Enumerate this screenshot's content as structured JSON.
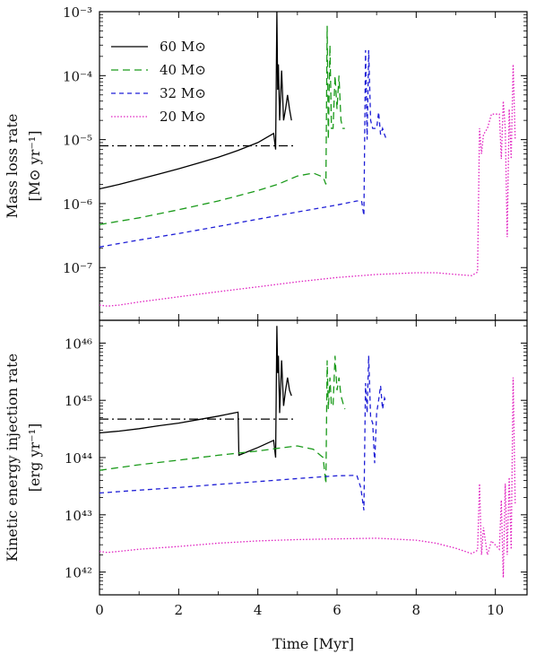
{
  "chart_data": [
    {
      "type": "line",
      "panel": "top",
      "ylabel_line1": "Mass loss rate",
      "ylabel_line2": "[M⊙ yr⁻¹]",
      "yscale": "log",
      "ylim": [
        1.5e-08,
        0.001
      ],
      "xlim": [
        0,
        10.8
      ],
      "y_ticks": [
        {
          "value": 1e-07,
          "label": "10⁻⁷"
        },
        {
          "value": 1e-06,
          "label": "10⁻⁶"
        },
        {
          "value": 1e-05,
          "label": "10⁻⁵"
        },
        {
          "value": 0.0001,
          "label": "10⁻⁴"
        },
        {
          "value": 0.001,
          "label": "10⁻³"
        }
      ],
      "legend": {
        "position": "top-left"
      },
      "reference_line": {
        "y": 8e-06,
        "x": [
          0,
          4.9
        ],
        "style": "dash-dot",
        "color": "#000000"
      },
      "series": [
        {
          "name": "60 M⊙",
          "color": "#000000",
          "style": "solid",
          "x": [
            0,
            0.5,
            1,
            1.5,
            2,
            2.5,
            3,
            3.5,
            4,
            4.4,
            4.45,
            4.48,
            4.5,
            4.52,
            4.55,
            4.6,
            4.65,
            4.7,
            4.75,
            4.8,
            4.85
          ],
          "y": [
            1.7e-06,
            2e-06,
            2.4e-06,
            2.9e-06,
            3.5e-06,
            4.3e-06,
            5.3e-06,
            6.8e-06,
            9e-06,
            1.25e-05,
            7e-06,
            0.001,
            6e-05,
            0.00015,
            2e-05,
            0.00012,
            2e-05,
            3e-05,
            5e-05,
            3e-05,
            2e-05
          ]
        },
        {
          "name": "40 M⊙",
          "color": "#1a9a1a",
          "style": "dashed",
          "x": [
            0,
            1,
            2,
            3,
            4,
            4.5,
            5,
            5.4,
            5.65,
            5.72,
            5.75,
            5.78,
            5.82,
            5.86,
            5.9,
            5.95,
            6.0,
            6.05,
            6.1,
            6.15,
            6.2
          ],
          "y": [
            4.7e-07,
            6e-07,
            8e-07,
            1.1e-06,
            1.6e-06,
            2e-06,
            2.7e-06,
            3e-06,
            2.6e-06,
            2e-06,
            0.0006,
            1e-05,
            0.0003,
            1.5e-05,
            1.5e-05,
            0.0001,
            3e-05,
            0.0001,
            2e-05,
            1.5e-05,
            1.5e-05
          ]
        },
        {
          "name": "32 M⊙",
          "color": "#1f1fd6",
          "style": "dashed-fine",
          "x": [
            0,
            1,
            2,
            3,
            4,
            5,
            6,
            6.5,
            6.62,
            6.68,
            6.72,
            6.76,
            6.8,
            6.85,
            6.9,
            6.95,
            7.0,
            7.05,
            7.1,
            7.15,
            7.2,
            7.25
          ],
          "y": [
            2.1e-07,
            2.7e-07,
            3.4e-07,
            4.4e-07,
            5.7e-07,
            7.4e-07,
            9.5e-07,
            1.1e-06,
            1.1e-06,
            6.5e-07,
            0.00025,
            1e-05,
            0.00025,
            2e-05,
            1.5e-05,
            1.5e-05,
            1.5e-05,
            2.7e-05,
            1.2e-05,
            1.5e-05,
            1.2e-05,
            1e-05
          ]
        },
        {
          "name": "20 M⊙",
          "color": "#e020c0",
          "style": "dotted",
          "x": [
            0,
            0.2,
            0.5,
            1,
            2,
            3,
            4,
            5,
            6,
            7,
            8,
            8.5,
            9,
            9.4,
            9.55,
            9.6,
            9.65,
            9.7,
            9.8,
            9.9,
            10.1,
            10.15,
            10.2,
            10.25,
            10.3,
            10.35,
            10.4,
            10.45,
            10.5
          ],
          "y": [
            2.6e-08,
            2.5e-08,
            2.6e-08,
            2.9e-08,
            3.5e-08,
            4.2e-08,
            5e-08,
            6e-08,
            7e-08,
            7.8e-08,
            8.3e-08,
            8.3e-08,
            7.8e-08,
            7.5e-08,
            8.5e-08,
            1.5e-05,
            6e-06,
            1.2e-05,
            1.5e-05,
            2.5e-05,
            2.5e-05,
            5e-06,
            4e-05,
            1.5e-05,
            3e-07,
            3e-05,
            5e-06,
            0.00015,
            1e-05
          ]
        }
      ]
    },
    {
      "type": "line",
      "panel": "bottom",
      "ylabel_line1": "Kinetic energy injection rate",
      "ylabel_line2": "[erg yr⁻¹]",
      "yscale": "log",
      "ylim": [
        4e+41,
        2.5e+46
      ],
      "xlim": [
        0,
        10.8
      ],
      "xlabel": "Time [Myr]",
      "x_ticks": [
        {
          "value": 0,
          "label": "0"
        },
        {
          "value": 2,
          "label": "2"
        },
        {
          "value": 4,
          "label": "4"
        },
        {
          "value": 6,
          "label": "6"
        },
        {
          "value": 8,
          "label": "8"
        },
        {
          "value": 10,
          "label": "10"
        }
      ],
      "y_ticks": [
        {
          "value": 1e+42,
          "label": "10⁴²"
        },
        {
          "value": 1e+43,
          "label": "10⁴³"
        },
        {
          "value": 1e+44,
          "label": "10⁴⁴"
        },
        {
          "value": 1e+45,
          "label": "10⁴⁵"
        },
        {
          "value": 1e+46,
          "label": "10⁴⁶"
        }
      ],
      "reference_line": {
        "y": 4.7e+44,
        "x": [
          0,
          4.9
        ],
        "style": "dash-dot",
        "color": "#000000"
      },
      "series": [
        {
          "name": "60 M⊙",
          "color": "#000000",
          "style": "solid",
          "x": [
            0,
            0.5,
            1,
            1.5,
            2,
            2.5,
            3,
            3.5,
            3.52,
            4,
            4.4,
            4.45,
            4.48,
            4.5,
            4.52,
            4.55,
            4.6,
            4.65,
            4.7,
            4.75,
            4.8,
            4.85
          ],
          "y": [
            2.7e+44,
            2.9e+44,
            3.2e+44,
            3.6e+44,
            4e+44,
            4.6e+44,
            5.3e+44,
            6.2e+44,
            1.1e+44,
            1.5e+44,
            2e+44,
            1e+44,
            2e+46,
            3e+45,
            6e+45,
            6e+44,
            5e+45,
            8e+44,
            1.5e+45,
            2.5e+45,
            1.5e+45,
            1.2e+45
          ]
        },
        {
          "name": "40 M⊙",
          "color": "#1a9a1a",
          "style": "dashed",
          "x": [
            0,
            1,
            2,
            3,
            4,
            4.5,
            5,
            5.4,
            5.65,
            5.72,
            5.75,
            5.78,
            5.82,
            5.86,
            5.9,
            5.95,
            6.0,
            6.05,
            6.1,
            6.15,
            6.2
          ],
          "y": [
            6e+43,
            7.5e+43,
            9e+43,
            1.1e+44,
            1.3e+44,
            1.45e+44,
            1.6e+44,
            1.4e+44,
            1e+44,
            3.5e+43,
            5e+45,
            7e+44,
            2.5e+45,
            8e+44,
            8e+44,
            6e+45,
            1.5e+45,
            2.5e+45,
            1.2e+45,
            9e+44,
            7e+44
          ]
        },
        {
          "name": "32 M⊙",
          "color": "#1f1fd6",
          "style": "dashed-fine",
          "x": [
            0,
            1,
            2,
            3,
            4,
            5,
            6,
            6.5,
            6.6,
            6.68,
            6.72,
            6.76,
            6.8,
            6.85,
            6.9,
            6.95,
            7.0,
            7.05,
            7.1,
            7.15,
            7.2,
            7.25
          ],
          "y": [
            2.4e+43,
            2.7e+43,
            3e+43,
            3.4e+43,
            3.8e+43,
            4.3e+43,
            4.8e+43,
            4.9e+43,
            3e+43,
            1.2e+43,
            2e+45,
            6e+44,
            6e+45,
            5e+44,
            4e+44,
            8e+43,
            6e+44,
            1e+45,
            1.8e+45,
            7e+44,
            1.1e+45,
            9e+44
          ]
        },
        {
          "name": "20 M⊙",
          "color": "#e020c0",
          "style": "dotted",
          "x": [
            0,
            0.2,
            0.5,
            1,
            2,
            3,
            4,
            5,
            6,
            7,
            8,
            8.5,
            9,
            9.4,
            9.55,
            9.6,
            9.65,
            9.7,
            9.8,
            9.9,
            10.1,
            10.15,
            10.2,
            10.25,
            10.3,
            10.35,
            10.4,
            10.45,
            10.5
          ],
          "y": [
            2.3e+42,
            2.2e+42,
            2.3e+42,
            2.5e+42,
            2.8e+42,
            3.2e+42,
            3.5e+42,
            3.7e+42,
            3.8e+42,
            3.9e+42,
            3.6e+42,
            3.2e+42,
            2.6e+42,
            2.1e+42,
            2.4e+42,
            3.5e+43,
            2e+42,
            6e+42,
            2e+42,
            3.5e+42,
            2.5e+42,
            1.8e+43,
            8e+41,
            3.5e+43,
            2e+42,
            4.5e+43,
            2.5e+42,
            2.5e+45,
            1.5e+43
          ]
        }
      ]
    }
  ]
}
